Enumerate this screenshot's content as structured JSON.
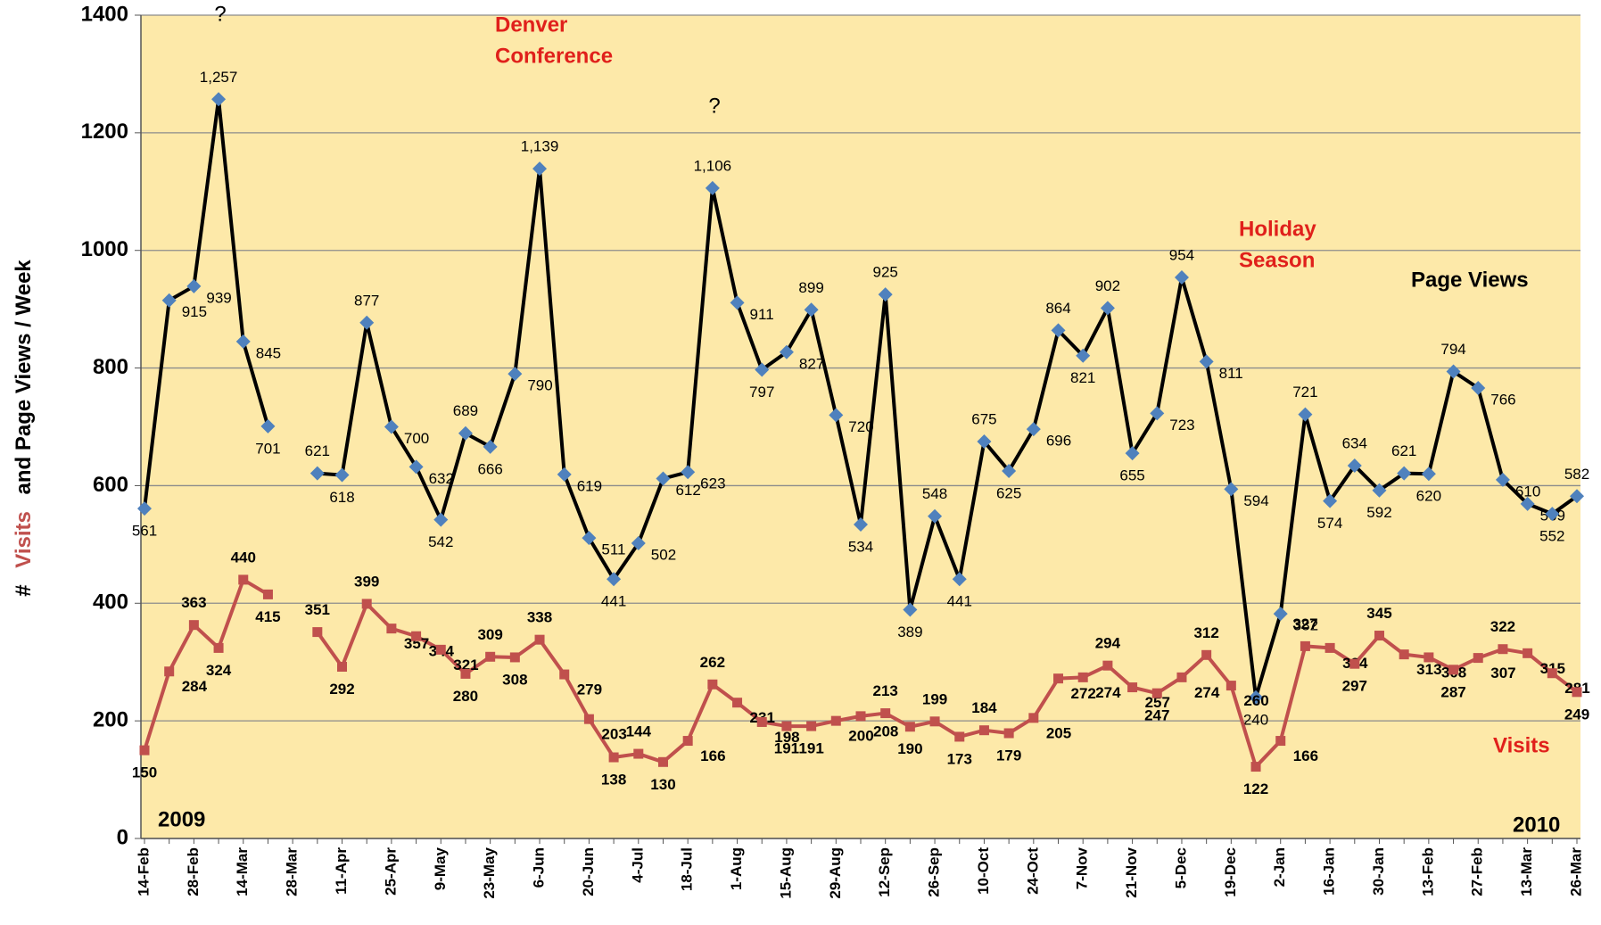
{
  "chart_data": {
    "type": "line",
    "y_label": [
      "#",
      "Visits",
      "and Page Views / Week"
    ],
    "annotations": [
      "?",
      "Denver",
      "Conference",
      "?",
      "Holiday",
      "Season",
      "2009",
      "2010"
    ],
    "categories": [
      "14-Feb",
      null,
      "28-Feb",
      null,
      "14-Mar",
      null,
      "28-Mar",
      null,
      "11-Apr",
      null,
      "25-Apr",
      null,
      "9-May",
      null,
      "23-May",
      null,
      "6-Jun",
      null,
      "20-Jun",
      null,
      "4-Jul",
      null,
      "18-Jul",
      null,
      "1-Aug",
      null,
      "15-Aug",
      null,
      "29-Aug",
      null,
      "12-Sep",
      null,
      "26-Sep",
      null,
      "10-Oct",
      null,
      "24-Oct",
      null,
      "7-Nov",
      null,
      "21-Nov",
      null,
      "5-Dec",
      null,
      "19-Dec",
      null,
      "2-Jan",
      null,
      "16-Jan",
      null,
      "30-Jan",
      null,
      "13-Feb",
      null,
      "27-Feb",
      null,
      "13-Mar",
      null,
      "26-Mar"
    ],
    "series": [
      {
        "name": "Page Views",
        "color": "#000000",
        "marker_color": "#4f81bd",
        "marker": "diamond",
        "values": [
          561,
          915,
          939,
          1257,
          845,
          701,
          null,
          621,
          618,
          877,
          700,
          632,
          542,
          689,
          666,
          790,
          1139,
          619,
          511,
          441,
          502,
          612,
          623,
          1106,
          911,
          797,
          827,
          899,
          720,
          534,
          925,
          389,
          548,
          441,
          675,
          625,
          696,
          864,
          821,
          902,
          655,
          723,
          954,
          811,
          594,
          240,
          382,
          721,
          574,
          634,
          592,
          621,
          620,
          794,
          766,
          610,
          569,
          552,
          582
        ],
        "value_labels": [
          "561",
          "915",
          "939",
          "1,257",
          "845",
          "701",
          null,
          "621",
          "618",
          "877",
          "700",
          "632",
          "542",
          "689",
          "666",
          "790",
          "1,139",
          "619",
          "511",
          "441",
          "502",
          "612",
          "623",
          "1,106",
          "911",
          "797",
          "827",
          "899",
          "720",
          "534",
          "925",
          "389",
          "548",
          "441",
          "675",
          "625",
          "696",
          "864",
          "821",
          "902",
          "655",
          "723",
          "954",
          "811",
          "594",
          "240",
          "382",
          "721",
          "574",
          "634",
          "592",
          "621",
          "620",
          "794",
          "766",
          "610",
          "569",
          "552",
          "582"
        ]
      },
      {
        "name": "Visits",
        "color": "#c0504d",
        "marker_color": "#c0504d",
        "marker": "square",
        "values": [
          150,
          284,
          363,
          324,
          440,
          415,
          null,
          351,
          292,
          399,
          357,
          344,
          321,
          280,
          309,
          308,
          338,
          279,
          203,
          138,
          144,
          130,
          166,
          262,
          231,
          198,
          191,
          191,
          200,
          208,
          213,
          190,
          199,
          173,
          184,
          179,
          205,
          272,
          274,
          294,
          257,
          247,
          274,
          312,
          260,
          122,
          166,
          327,
          324,
          297,
          345,
          313,
          308,
          287,
          307,
          322,
          315,
          281,
          249
        ]
      }
    ],
    "ylim": [
      0,
      1400
    ],
    "yticks": [
      0,
      200,
      400,
      600,
      800,
      1000,
      1200,
      1400
    ],
    "grid": true,
    "background": "#fde9a9"
  }
}
